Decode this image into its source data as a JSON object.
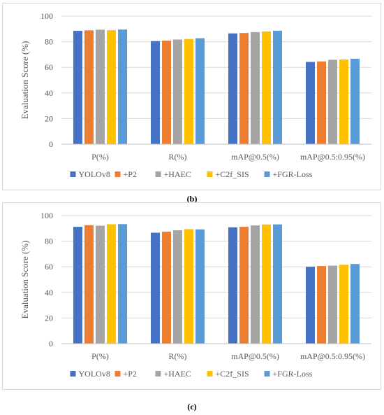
{
  "colors": {
    "YOLOv8": "#4472c4",
    "+P2": "#ed7d31",
    "+HAEC": "#a5a5a5",
    "+C2f_SIS": "#ffc000",
    "+FGR-Loss": "#5b9bd5",
    "grid": "#d9d9d9",
    "text": "#595959"
  },
  "panels": [
    {
      "caption": "(b)"
    },
    {
      "caption": "(c)"
    }
  ],
  "chart_data": [
    {
      "type": "bar",
      "categories": [
        "P(%)",
        "R(%)",
        "mAP@0.5(%)",
        "mAP@0.5:0.95(%)"
      ],
      "series": [
        {
          "name": "YOLOv8",
          "values": [
            88.5,
            80.5,
            86.5,
            64.2
          ]
        },
        {
          "name": "+P2",
          "values": [
            88.9,
            80.8,
            86.8,
            64.6
          ]
        },
        {
          "name": "+HAEC",
          "values": [
            89.4,
            81.7,
            87.5,
            65.9
          ]
        },
        {
          "name": "+C2f_SIS",
          "values": [
            89.0,
            82.1,
            88.0,
            66.1
          ]
        },
        {
          "name": "+FGR-Loss",
          "values": [
            89.5,
            82.7,
            88.6,
            66.7
          ]
        }
      ],
      "ylabel": "Evaluation Score (%)",
      "ylim": [
        0,
        100
      ],
      "yticks": [
        "0",
        "20",
        "40",
        "60",
        "80",
        "100"
      ],
      "grid": true,
      "legend": "bottom"
    },
    {
      "type": "bar",
      "categories": [
        "P(%)",
        "R(%)",
        "mAP@0.5(%)",
        "mAP@0.5:0.95(%)"
      ],
      "series": [
        {
          "name": "YOLOv8",
          "values": [
            91.2,
            86.6,
            90.8,
            60.0
          ]
        },
        {
          "name": "+P2",
          "values": [
            92.5,
            87.4,
            91.2,
            60.6
          ]
        },
        {
          "name": "+HAEC",
          "values": [
            92.1,
            88.5,
            92.3,
            60.9
          ]
        },
        {
          "name": "+C2f_SIS",
          "values": [
            93.2,
            89.4,
            93.0,
            61.6
          ]
        },
        {
          "name": "+FGR-Loss",
          "values": [
            93.3,
            89.2,
            93.1,
            62.2
          ]
        }
      ],
      "ylabel": "Evaluation Score (%)",
      "ylim": [
        0,
        100
      ],
      "yticks": [
        "0",
        "20",
        "40",
        "60",
        "80",
        "100"
      ],
      "grid": true,
      "legend": "bottom"
    }
  ]
}
